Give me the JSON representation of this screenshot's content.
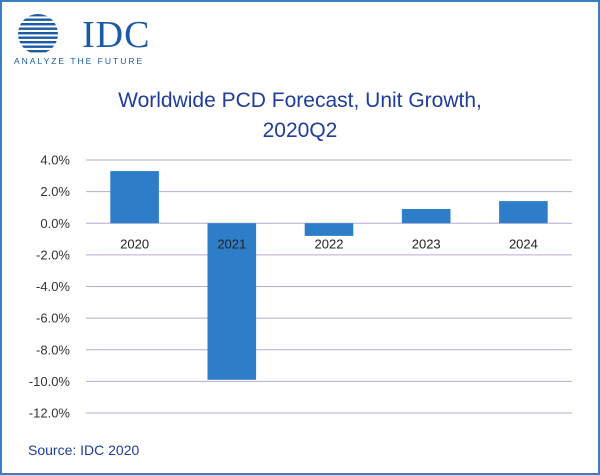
{
  "brand": {
    "name": "IDC",
    "tagline": "ANALYZE THE FUTURE",
    "color": "#1c5aa6"
  },
  "source": "Source: IDC 2020",
  "chart_data": {
    "type": "bar",
    "title_line1": "Worldwide PCD Forecast, Unit Growth,",
    "title_line2": "2020Q2",
    "title": "Worldwide PCD Forecast, Unit Growth, 2020Q2",
    "xlabel": "",
    "ylabel": "",
    "categories": [
      "2020",
      "2021",
      "2022",
      "2023",
      "2024"
    ],
    "values": [
      3.3,
      -9.9,
      -0.8,
      0.9,
      1.4
    ],
    "ylim": [
      -12,
      4
    ],
    "yticks": [
      4,
      2,
      0,
      -2,
      -4,
      -6,
      -8,
      -10,
      -12
    ],
    "ytick_labels": [
      "4.0%",
      "2.0%",
      "0.0%",
      "-2.0%",
      "-4.0%",
      "-6.0%",
      "-8.0%",
      "-10.0%",
      "-12.0%"
    ],
    "grid": true,
    "legend": "none",
    "bar_color": "#2d7dc8",
    "grid_color": "#b9a9d4"
  }
}
